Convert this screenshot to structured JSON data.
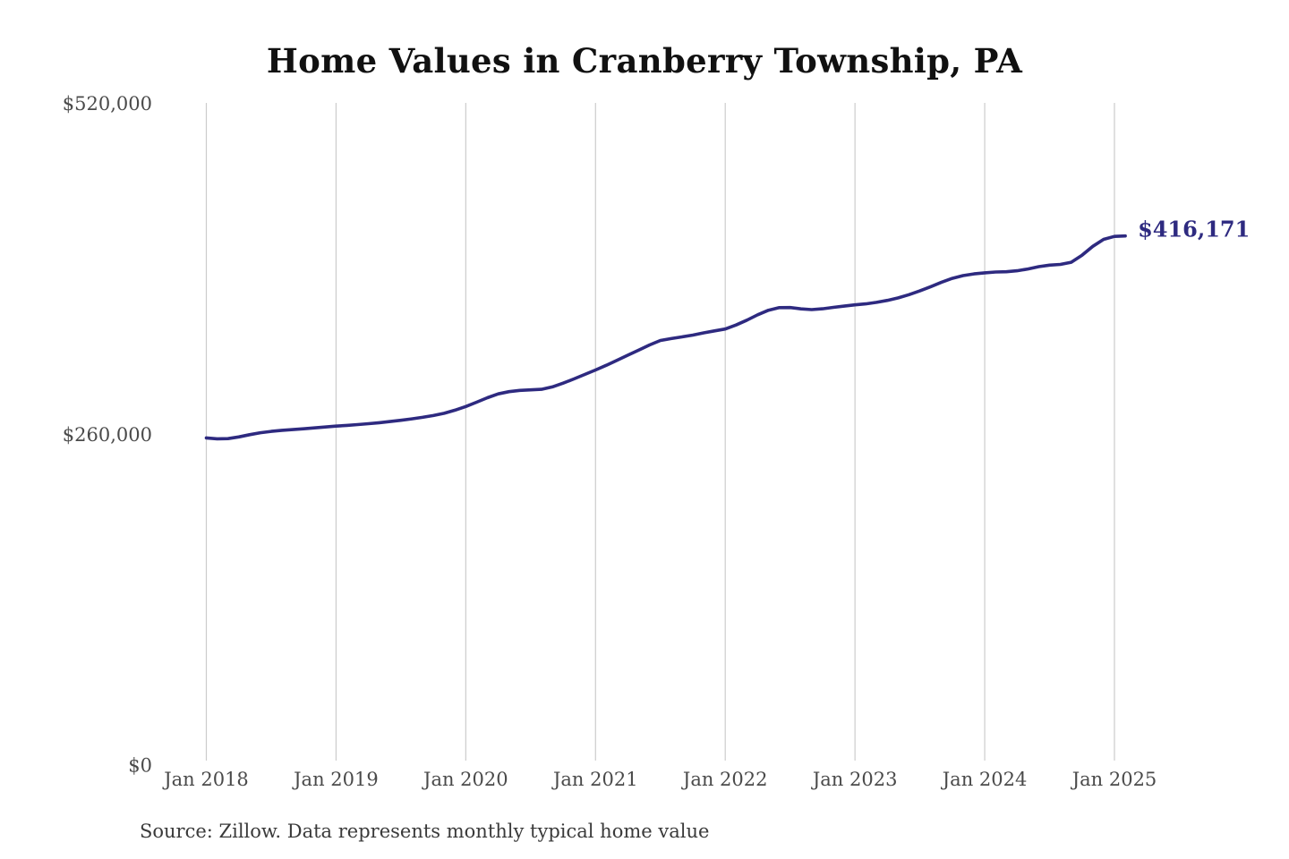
{
  "chart_data": {
    "type": "line",
    "title": "Home Values in Cranberry Township, PA",
    "source_note": "Source: Zillow. Data represents monthly typical home value",
    "xlabel": "",
    "ylabel": "",
    "ylim": [
      0,
      520000
    ],
    "grid": "vertical-only",
    "legend": "none",
    "end_value_label": "$416,171",
    "x_tick_labels": [
      "Jan 2018",
      "Jan 2019",
      "Jan 2020",
      "Jan 2021",
      "Jan 2022",
      "Jan 2023",
      "Jan 2024",
      "Jan 2025"
    ],
    "y_ticks": [
      {
        "value": 0,
        "label": "$0"
      },
      {
        "value": 260000,
        "label": "$260,000"
      },
      {
        "value": 520000,
        "label": "$520,000"
      }
    ],
    "x": [
      "2018-01",
      "2018-02",
      "2018-03",
      "2018-04",
      "2018-05",
      "2018-06",
      "2018-07",
      "2018-08",
      "2018-09",
      "2018-10",
      "2018-11",
      "2018-12",
      "2019-01",
      "2019-02",
      "2019-03",
      "2019-04",
      "2019-05",
      "2019-06",
      "2019-07",
      "2019-08",
      "2019-09",
      "2019-10",
      "2019-11",
      "2019-12",
      "2020-01",
      "2020-02",
      "2020-03",
      "2020-04",
      "2020-05",
      "2020-06",
      "2020-07",
      "2020-08",
      "2020-09",
      "2020-10",
      "2020-11",
      "2020-12",
      "2021-01",
      "2021-02",
      "2021-03",
      "2021-04",
      "2021-05",
      "2021-06",
      "2021-07",
      "2021-08",
      "2021-09",
      "2021-10",
      "2021-11",
      "2021-12",
      "2022-01",
      "2022-02",
      "2022-03",
      "2022-04",
      "2022-05",
      "2022-06",
      "2022-07",
      "2022-08",
      "2022-09",
      "2022-10",
      "2022-11",
      "2022-12",
      "2023-01",
      "2023-02",
      "2023-03",
      "2023-04",
      "2023-05",
      "2023-06",
      "2023-07",
      "2023-08",
      "2023-09",
      "2023-10",
      "2023-11",
      "2023-12",
      "2024-01",
      "2024-02",
      "2024-03",
      "2024-04",
      "2024-05",
      "2024-06",
      "2024-07",
      "2024-08",
      "2024-09",
      "2024-10",
      "2024-11",
      "2024-12",
      "2025-01",
      "2025-02"
    ],
    "series": [
      {
        "name": "Monthly typical home value",
        "values": [
          257400,
          256700,
          256900,
          258200,
          260000,
          261500,
          262600,
          263400,
          264000,
          264600,
          265300,
          266000,
          266700,
          267300,
          267900,
          268600,
          269400,
          270300,
          271300,
          272400,
          273600,
          275000,
          276800,
          279200,
          282100,
          285500,
          289000,
          292000,
          293800,
          294800,
          295200,
          295600,
          297500,
          300500,
          303800,
          307300,
          310800,
          314500,
          318500,
          322500,
          326500,
          330500,
          334000,
          335500,
          336800,
          338200,
          340000,
          341500,
          343000,
          346200,
          350000,
          354200,
          357800,
          359800,
          359900,
          358800,
          358300,
          358900,
          360000,
          361000,
          362000,
          362800,
          364000,
          365500,
          367500,
          370000,
          373000,
          376300,
          379800,
          382800,
          385000,
          386300,
          387200,
          387800,
          388000,
          388800,
          390200,
          392000,
          393200,
          393800,
          395500,
          401000,
          408000,
          413500,
          415800,
          416171
        ]
      }
    ],
    "colors": {
      "line": "#2e2a80",
      "grid": "#cccccc",
      "tick_label": "#4a4a4a",
      "title": "#111111",
      "source": "#3a3a3a",
      "background": "#ffffff"
    }
  }
}
